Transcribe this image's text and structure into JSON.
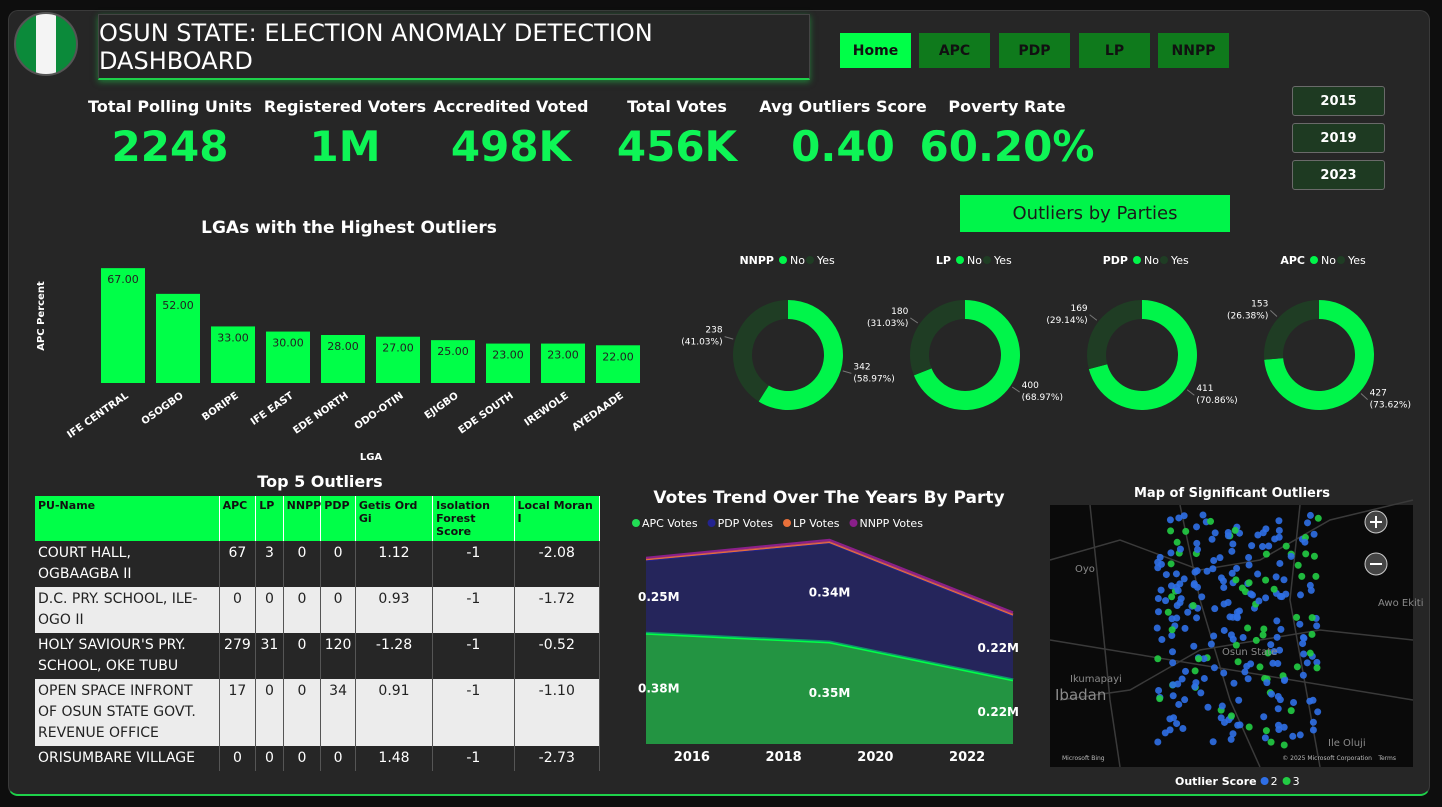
{
  "header": {
    "title": "OSUN STATE: ELECTION ANOMALY DETECTION DASHBOARD"
  },
  "nav": [
    "Home",
    "APC",
    "PDP",
    "LP",
    "NNPP"
  ],
  "years": [
    "2015",
    "2019",
    "2023"
  ],
  "kpis": [
    {
      "label": "Total Polling Units",
      "value": "2248"
    },
    {
      "label": "Registered Voters",
      "value": "1M"
    },
    {
      "label": "Accredited Voted",
      "value": "498K"
    },
    {
      "label": "Total Votes",
      "value": "456K"
    },
    {
      "label": "Avg Outliers Score",
      "value": "0.40"
    },
    {
      "label": "Poverty Rate",
      "value": "60.20%"
    }
  ],
  "outliers_button": "Outliers by Parties",
  "chart_data": [
    {
      "type": "bar",
      "title": "LGAs with the Highest Outliers",
      "x_label": "LGA",
      "y_label": "APC Percent",
      "categories": [
        "IFE CENTRAL",
        "OSOGBO",
        "BORIPE",
        "IFE EAST",
        "EDE NORTH",
        "ODO-OTIN",
        "EJIGBO",
        "EDE SOUTH",
        "IREWOLE",
        "AYEDAADE"
      ],
      "values": [
        67,
        52,
        33,
        30,
        28,
        27,
        25,
        23,
        23,
        22
      ],
      "value_labels": [
        "67.00",
        "52.00",
        "33.00",
        "30.00",
        "28.00",
        "27.00",
        "25.00",
        "23.00",
        "23.00",
        "22.00"
      ],
      "color": "#00ff48",
      "ylim": [
        0,
        70
      ]
    },
    {
      "type": "donut",
      "title": "NNPP",
      "categories": [
        "No",
        "Yes"
      ],
      "colors": [
        "#00f54a",
        "#1f3d24"
      ],
      "values": [
        342,
        238
      ],
      "percent_labels": [
        "(58.97%)",
        "(41.03%)"
      ]
    },
    {
      "type": "donut",
      "title": "LP",
      "categories": [
        "No",
        "Yes"
      ],
      "colors": [
        "#00f54a",
        "#1f3d24"
      ],
      "values": [
        400,
        180
      ],
      "percent_labels": [
        "(68.97%)",
        "(31.03%)"
      ]
    },
    {
      "type": "donut",
      "title": "PDP",
      "categories": [
        "No",
        "Yes"
      ],
      "colors": [
        "#00f54a",
        "#1f3d24"
      ],
      "values": [
        411,
        169
      ],
      "percent_labels": [
        "(70.86%)",
        "(29.14%)"
      ]
    },
    {
      "type": "donut",
      "title": "APC",
      "categories": [
        "No",
        "Yes"
      ],
      "colors": [
        "#00f54a",
        "#1f3d24"
      ],
      "values": [
        427,
        153
      ],
      "percent_labels": [
        "(73.62%)",
        "(26.38%)"
      ]
    },
    {
      "type": "stacked-area",
      "title": "Votes Trend Over The Years By Party",
      "x": [
        2015,
        2019,
        2023
      ],
      "xlim": [
        2015,
        2023
      ],
      "xticks": [
        2016,
        2018,
        2020,
        2022
      ],
      "ylim": [
        0,
        0.7
      ],
      "series": [
        {
          "name": "APC Votes",
          "color": "#22dd55",
          "values": [
            0.38,
            0.35,
            0.22
          ],
          "value_labels": [
            "0.38M",
            "0.35M",
            "0.22M"
          ]
        },
        {
          "name": "PDP Votes",
          "color": "#23238f",
          "values": [
            0.25,
            0.34,
            0.22
          ],
          "value_labels": [
            "0.25M",
            "0.34M",
            "0.22M"
          ]
        },
        {
          "name": "LP Votes",
          "color": "#e8703a",
          "values": [
            0.004,
            0.003,
            0.004
          ]
        },
        {
          "name": "NNPP Votes",
          "color": "#8a1f8a",
          "values": [
            0.005,
            0.008,
            0.008
          ]
        }
      ]
    },
    {
      "type": "map",
      "title": "Map of Significant Outliers",
      "legend_title": "Outlier Score",
      "categories": [
        "2",
        "3"
      ],
      "colors": [
        "#2f6fe6",
        "#22cc44"
      ],
      "places": [
        "Oyo",
        "Ibadan",
        "Ikumapayi",
        "Osun State",
        "Awo Ekiti",
        "Ile Oluji"
      ],
      "attribution": [
        "Microsoft Bing",
        "© 2025 Microsoft Corporation",
        "Terms"
      ]
    }
  ],
  "table": {
    "title": "Top 5 Outliers",
    "columns": [
      "PU-Name",
      "APC",
      "LP",
      "NNPP",
      "PDP",
      "Getis Ord Gi",
      "Isolation Forest Score",
      "Local Moran I"
    ],
    "rows": [
      [
        "COURT HALL, OGBAAGBA II",
        "67",
        "3",
        "0",
        "0",
        "1.12",
        "-1",
        "-2.08"
      ],
      [
        "D.C. PRY. SCHOOL, ILE-OGO II",
        "0",
        "0",
        "0",
        "0",
        "0.93",
        "-1",
        "-1.72"
      ],
      [
        "HOLY SAVIOUR'S PRY. SCHOOL, OKE TUBU",
        "279",
        "31",
        "0",
        "120",
        "-1.28",
        "-1",
        "-0.52"
      ],
      [
        "OPEN SPACE INFRONT OF OSUN STATE GOVT. REVENUE OFFICE",
        "17",
        "0",
        "0",
        "34",
        "0.91",
        "-1",
        "-1.10"
      ],
      [
        "ORISUMBARE VILLAGE",
        "0",
        "0",
        "0",
        "0",
        "1.48",
        "-1",
        "-2.73"
      ]
    ]
  }
}
